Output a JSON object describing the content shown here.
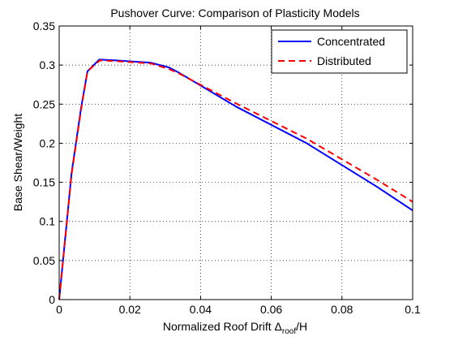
{
  "chart_data": {
    "type": "line",
    "title": "Pushover Curve:  Comparison of Plasticity Models",
    "xlabel_prefix": "Normalized Roof Drift Δ",
    "xlabel_subscript": "roof",
    "xlabel_suffix": "/H",
    "ylabel": "Base Shear/Weight",
    "xlim": [
      0,
      0.1
    ],
    "ylim": [
      0,
      0.35
    ],
    "xticks": [
      0,
      0.02,
      0.04,
      0.06,
      0.08,
      0.1
    ],
    "xtick_labels": [
      "0",
      "0.02",
      "0.04",
      "0.06",
      "0.08",
      "0.1"
    ],
    "yticks": [
      0,
      0.05,
      0.1,
      0.15,
      0.2,
      0.25,
      0.3,
      0.35
    ],
    "ytick_labels": [
      "0",
      "0.05",
      "0.1",
      "0.15",
      "0.2",
      "0.25",
      "0.3",
      "0.35"
    ],
    "grid": true,
    "legend_position": "top-right",
    "series": [
      {
        "name": "Concentrated",
        "color": "#0000ff",
        "style": "solid",
        "x": [
          0,
          0.0035,
          0.0062,
          0.008,
          0.0113,
          0.016,
          0.026,
          0.031,
          0.034,
          0.05,
          0.07,
          0.09,
          0.1
        ],
        "y": [
          0,
          0.162,
          0.245,
          0.292,
          0.307,
          0.306,
          0.303,
          0.297,
          0.29,
          0.247,
          0.2,
          0.144,
          0.114
        ]
      },
      {
        "name": "Distributed",
        "color": "#ff0000",
        "style": "dashed",
        "x": [
          0,
          0.0035,
          0.0062,
          0.008,
          0.0115,
          0.016,
          0.026,
          0.031,
          0.034,
          0.05,
          0.07,
          0.09,
          0.1
        ],
        "y": [
          0,
          0.16,
          0.243,
          0.292,
          0.306,
          0.305,
          0.302,
          0.295,
          0.289,
          0.251,
          0.206,
          0.153,
          0.125
        ]
      }
    ]
  }
}
